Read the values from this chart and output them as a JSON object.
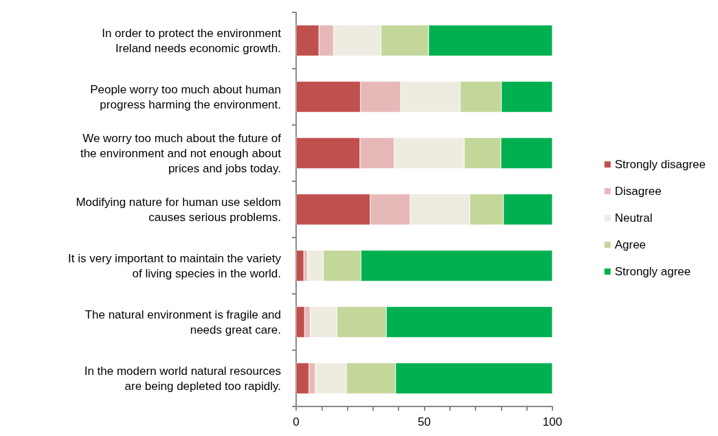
{
  "chart_data": {
    "type": "bar",
    "orientation": "horizontal",
    "stacked": true,
    "categories": [
      "In order to protect the environment\nIreland needs economic growth.",
      "People worry too much about human\nprogress harming the environment.",
      "We worry too much about the future of\nthe environment and not enough about\nprices and jobs today.",
      "Modifying nature for human use seldom\ncauses serious problems.",
      "It is very important to maintain the variety\nof living species in the world.",
      "The natural environment is fragile and\nneeds great care.",
      "In the modern world natural resources\nare being depleted too rapidly."
    ],
    "series": [
      {
        "name": "Strongly disagree",
        "color": "#c0504d",
        "values": [
          8.9,
          25.1,
          24.9,
          28.9,
          3.0,
          3.3,
          5.0
        ]
      },
      {
        "name": "Disagree",
        "color": "#e6b9b8",
        "values": [
          5.7,
          15.7,
          13.4,
          15.6,
          1.4,
          2.2,
          2.5
        ]
      },
      {
        "name": "Neutral",
        "color": "#eeece1",
        "values": [
          18.5,
          23.2,
          27.3,
          23.2,
          6.2,
          10.4,
          12.1
        ]
      },
      {
        "name": "Agree",
        "color": "#c4d79b",
        "values": [
          18.6,
          16.1,
          14.3,
          13.2,
          14.7,
          19.3,
          19.2
        ]
      },
      {
        "name": "Strongly agree",
        "color": "#00b050",
        "values": [
          48.3,
          19.9,
          20.1,
          19.1,
          74.7,
          64.8,
          61.2
        ]
      }
    ],
    "xlim": [
      0,
      100
    ],
    "xticks": [
      0,
      {
        "value": 10,
        "label": null
      },
      {
        "value": 20,
        "label": null
      },
      {
        "value": 30,
        "label": null
      },
      {
        "value": 40,
        "label": null
      },
      50,
      {
        "value": 60,
        "label": null
      },
      {
        "value": 70,
        "label": null
      },
      {
        "value": 80,
        "label": null
      },
      {
        "value": 90,
        "label": null
      },
      100
    ],
    "legend": "right",
    "grid": false
  }
}
